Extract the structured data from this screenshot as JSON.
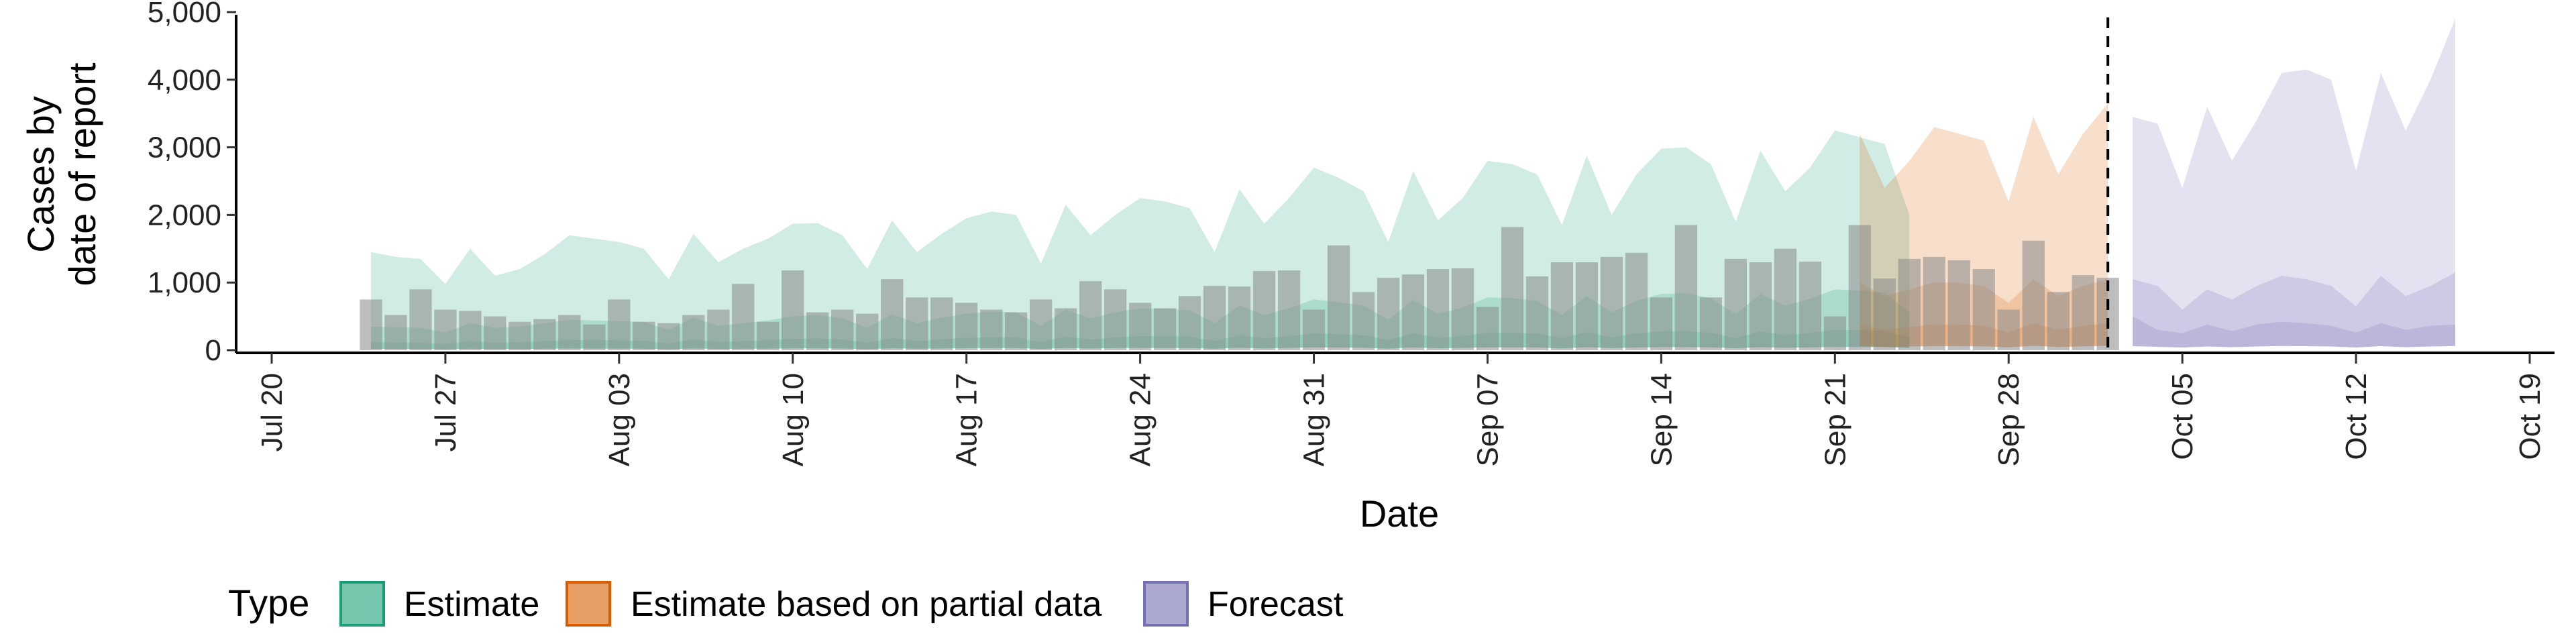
{
  "chart_data": {
    "type": "area",
    "xlabel": "Date",
    "ylabel_lines": [
      "Cases by",
      "date of report"
    ],
    "ylim": [
      0,
      5000
    ],
    "y_ticks": [
      0,
      1000,
      2000,
      3000,
      4000,
      5000
    ],
    "y_tick_labels": [
      "0",
      "1,000",
      "2,000",
      "3,000",
      "4,000",
      "5,000"
    ],
    "x_range": [
      "2020-07-19",
      "2020-10-20"
    ],
    "x_ticks": [
      "2020-07-20",
      "2020-07-27",
      "2020-08-03",
      "2020-08-10",
      "2020-08-17",
      "2020-08-24",
      "2020-08-31",
      "2020-09-07",
      "2020-09-14",
      "2020-09-21",
      "2020-09-28",
      "2020-10-05",
      "2020-10-12",
      "2020-10-19"
    ],
    "x_tick_labels": [
      "Jul 20",
      "Jul 27",
      "Aug 03",
      "Aug 10",
      "Aug 17",
      "Aug 24",
      "Aug 31",
      "Sep 07",
      "Sep 14",
      "Sep 21",
      "Sep 28",
      "Oct 05",
      "Oct 12",
      "Oct 19"
    ],
    "grid": false,
    "legend_position": "bottom",
    "legend_title": "Type",
    "legend": [
      {
        "label": "Estimate",
        "color": "#1b9e77"
      },
      {
        "label": "Estimate based on partial data",
        "color": "#d95f02"
      },
      {
        "label": "Forecast",
        "color": "#7570b3"
      }
    ],
    "vline_date": "2020-10-02",
    "bar_color": "#888888",
    "bars": {
      "start_date": "2020-07-24",
      "values": [
        750,
        520,
        900,
        600,
        580,
        500,
        420,
        460,
        520,
        380,
        750,
        420,
        400,
        520,
        600,
        980,
        420,
        1180,
        560,
        600,
        540,
        1050,
        780,
        780,
        700,
        600,
        560,
        750,
        620,
        1020,
        900,
        700,
        620,
        800,
        950,
        940,
        1170,
        1180,
        600,
        1550,
        860,
        1070,
        1120,
        1200,
        1210,
        640,
        1820,
        1090,
        1300,
        1300,
        1380,
        1440,
        780,
        1850,
        780,
        1350,
        1300,
        1500,
        1310,
        500,
        1850,
        1060,
        1350,
        1380,
        1330,
        1200,
        600,
        1620,
        860,
        1110,
        1070
      ]
    },
    "series": [
      {
        "name": "Estimate",
        "type": "Estimate",
        "start_date": "2020-07-24",
        "upper90": [
          1450,
          1380,
          1350,
          980,
          1500,
          1100,
          1200,
          1420,
          1700,
          1650,
          1600,
          1500,
          1050,
          1720,
          1300,
          1500,
          1650,
          1870,
          1880,
          1700,
          1200,
          1920,
          1450,
          1720,
          1950,
          2050,
          2000,
          1280,
          2150,
          1700,
          2000,
          2250,
          2200,
          2100,
          1450,
          2380,
          1870,
          2250,
          2700,
          2550,
          2350,
          1600,
          2650,
          1920,
          2250,
          2800,
          2750,
          2600,
          1850,
          2880,
          2000,
          2600,
          2980,
          3000,
          2750,
          1900,
          2950,
          2350,
          2700,
          3250,
          3150,
          3050,
          2000
        ],
        "upper50": [
          350,
          340,
          330,
          260,
          400,
          330,
          350,
          400,
          450,
          440,
          430,
          420,
          300,
          480,
          360,
          400,
          440,
          500,
          520,
          470,
          330,
          530,
          400,
          480,
          540,
          570,
          560,
          360,
          600,
          470,
          560,
          620,
          610,
          590,
          400,
          660,
          520,
          620,
          750,
          710,
          660,
          450,
          740,
          540,
          630,
          780,
          770,
          730,
          520,
          800,
          560,
          730,
          830,
          840,
          770,
          530,
          830,
          660,
          760,
          900,
          880,
          850,
          560
        ],
        "upper20": [
          120,
          115,
          110,
          90,
          135,
          110,
          118,
          135,
          150,
          148,
          145,
          140,
          100,
          160,
          120,
          135,
          148,
          168,
          175,
          158,
          110,
          178,
          135,
          160,
          182,
          192,
          188,
          120,
          200,
          158,
          188,
          208,
          205,
          198,
          135,
          220,
          175,
          208,
          250,
          238,
          220,
          150,
          248,
          180,
          210,
          260,
          258,
          245,
          175,
          268,
          188,
          245,
          278,
          280,
          258,
          178,
          278,
          220,
          255,
          300,
          295,
          285,
          188
        ],
        "lower": [
          20,
          20,
          18,
          15,
          22,
          18,
          19,
          22,
          25,
          24,
          24,
          23,
          16,
          26,
          20,
          22,
          24,
          27,
          28,
          26,
          18,
          29,
          22,
          26,
          30,
          31,
          31,
          20,
          33,
          26,
          31,
          34,
          33,
          32,
          22,
          36,
          28,
          34,
          41,
          39,
          36,
          24,
          40,
          29,
          34,
          42,
          42,
          40,
          28,
          44,
          31,
          40,
          45,
          46,
          42,
          29,
          45,
          36,
          41,
          49,
          48,
          46,
          31
        ]
      },
      {
        "name": "Estimate based on partial data",
        "type": "Estimate based on partial data",
        "start_date": "2020-09-22",
        "upper90": [
          3200,
          2400,
          2800,
          3300,
          3200,
          3100,
          2200,
          3450,
          2600,
          3200,
          3650
        ],
        "upper50": [
          1000,
          800,
          900,
          1000,
          1000,
          950,
          700,
          1050,
          800,
          950,
          1050
        ],
        "upper20": [
          380,
          300,
          340,
          380,
          380,
          360,
          260,
          400,
          300,
          360,
          400
        ],
        "lower": [
          60,
          50,
          55,
          60,
          60,
          58,
          42,
          64,
          48,
          58,
          64
        ]
      },
      {
        "name": "Forecast",
        "type": "Forecast",
        "start_date": "2020-10-03",
        "upper90": [
          3450,
          3350,
          2400,
          3600,
          2800,
          3400,
          4100,
          4150,
          4000,
          2650,
          4100,
          3250,
          4000,
          4900
        ],
        "upper50": [
          1050,
          950,
          600,
          900,
          750,
          950,
          1100,
          1050,
          950,
          650,
          1100,
          800,
          950,
          1150
        ],
        "upper20": [
          500,
          300,
          250,
          380,
          280,
          380,
          420,
          400,
          360,
          260,
          400,
          300,
          360,
          380
        ],
        "lower": [
          60,
          50,
          40,
          55,
          45,
          55,
          62,
          60,
          55,
          40,
          60,
          45,
          55,
          62
        ]
      }
    ]
  }
}
